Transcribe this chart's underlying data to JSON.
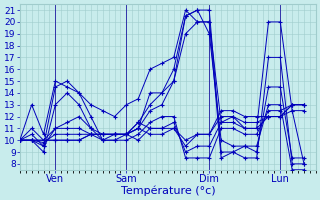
{
  "background_color": "#c8ecec",
  "grid_color": "#a0cccc",
  "line_color": "#0000bb",
  "marker_color": "#0000bb",
  "xlabel": "Température (°c)",
  "ylabel_ticks": [
    8,
    9,
    10,
    11,
    12,
    13,
    14,
    15,
    16,
    17,
    18,
    19,
    20,
    21
  ],
  "ylim": [
    7.5,
    21.5
  ],
  "xlim": [
    0,
    100
  ],
  "xtick_positions": [
    12,
    36,
    64,
    88
  ],
  "xtick_labels": [
    "Ven",
    "Sam",
    "Dim",
    "Lun"
  ],
  "vline_positions": [
    12,
    36,
    64,
    88
  ],
  "series": [
    [
      0,
      10,
      4,
      13,
      8,
      10.5,
      12,
      15,
      16,
      14.5,
      20,
      14,
      24,
      13,
      28,
      12.5,
      32,
      12,
      36,
      13,
      40,
      13.5,
      44,
      16,
      48,
      16.5,
      52,
      17,
      56,
      21,
      60,
      20,
      64,
      20,
      68,
      11.5,
      72,
      12,
      76,
      11,
      80,
      11,
      84,
      20,
      88,
      20,
      92,
      12.5,
      96,
      8
    ],
    [
      0,
      10,
      4,
      11,
      8,
      10,
      12,
      11,
      16,
      11.5,
      20,
      12,
      24,
      11,
      28,
      10.5,
      32,
      10.5,
      36,
      10.5,
      40,
      11.5,
      44,
      13,
      48,
      14,
      52,
      15,
      56,
      20.5,
      60,
      21,
      64,
      19,
      68,
      10,
      72,
      9.5,
      76,
      9.5,
      80,
      9,
      84,
      14.5,
      88,
      14.5,
      92,
      8.5,
      96,
      8.5
    ],
    [
      0,
      10,
      4,
      10.5,
      8,
      9.5,
      12,
      14.5,
      16,
      15,
      20,
      14,
      24,
      12,
      28,
      10,
      32,
      10,
      36,
      10.5,
      40,
      11,
      44,
      14,
      48,
      14,
      52,
      16,
      56,
      20.5,
      60,
      21,
      64,
      21,
      68,
      9,
      72,
      9,
      76,
      8.5,
      80,
      8.5,
      84,
      17,
      88,
      17,
      92,
      8,
      96,
      8
    ],
    [
      0,
      10,
      4,
      10,
      8,
      9,
      12,
      13,
      16,
      14,
      20,
      13,
      24,
      11,
      28,
      10,
      32,
      10.5,
      36,
      10.5,
      40,
      11,
      44,
      12.5,
      48,
      13,
      52,
      15,
      56,
      19,
      60,
      20,
      64,
      20,
      68,
      8.5,
      72,
      9,
      76,
      9.5,
      80,
      9.5,
      84,
      13,
      88,
      13,
      92,
      7.5,
      96,
      7.5
    ],
    [
      0,
      10,
      4,
      10,
      8,
      9.5,
      12,
      11,
      16,
      11,
      20,
      11,
      24,
      10.5,
      28,
      10,
      32,
      10,
      36,
      10,
      40,
      10.5,
      44,
      11.5,
      48,
      12,
      52,
      12,
      56,
      8.5,
      60,
      8.5,
      64,
      8.5,
      68,
      11,
      72,
      11,
      76,
      10.5,
      80,
      10.5,
      84,
      12.5,
      88,
      12.5,
      92,
      13,
      96,
      13
    ],
    [
      0,
      10,
      4,
      10,
      8,
      9.8,
      12,
      10.5,
      16,
      10.5,
      20,
      10.5,
      24,
      10.5,
      28,
      10.5,
      32,
      10.5,
      36,
      10.5,
      40,
      10,
      44,
      11,
      48,
      11,
      52,
      11.5,
      56,
      9,
      60,
      9.5,
      64,
      9.5,
      68,
      11.5,
      72,
      11.5,
      76,
      11,
      80,
      11,
      84,
      12,
      88,
      12,
      92,
      13,
      96,
      13
    ],
    [
      0,
      10,
      4,
      10,
      8,
      10,
      12,
      10,
      16,
      10,
      20,
      10,
      24,
      10.5,
      28,
      10.5,
      32,
      10.5,
      36,
      10.5,
      40,
      11,
      44,
      10.5,
      48,
      10.5,
      52,
      11,
      56,
      9.5,
      60,
      10.5,
      64,
      10.5,
      68,
      12,
      72,
      12,
      76,
      11.5,
      80,
      11.5,
      84,
      12,
      88,
      12,
      92,
      12.5,
      96,
      12.5
    ],
    [
      0,
      10,
      4,
      10,
      8,
      10,
      12,
      10,
      16,
      10,
      20,
      10,
      24,
      10.5,
      28,
      10.5,
      32,
      10.5,
      36,
      10.5,
      40,
      11.5,
      44,
      11,
      48,
      11,
      52,
      11,
      56,
      10,
      60,
      10.5,
      64,
      10.5,
      68,
      12.5,
      72,
      12.5,
      76,
      12,
      80,
      12,
      84,
      12,
      88,
      12,
      92,
      13,
      96,
      13
    ]
  ]
}
